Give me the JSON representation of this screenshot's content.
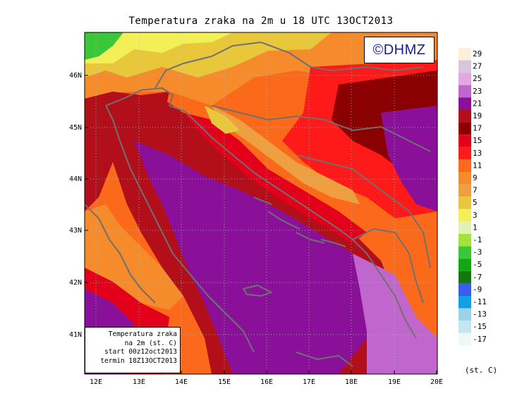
{
  "title": "Temperatura zraka na 2m u 18 UTC 13OCT2013",
  "logo": "©DHMZ",
  "info_box": {
    "line1": "Temperatura zraka",
    "line2": "na 2m (st. C)",
    "line3": "start 00z12oct2013",
    "line4": "termin 18Z13OCT2013"
  },
  "x_ticks": [
    "12E",
    "13E",
    "14E",
    "15E",
    "16E",
    "17E",
    "18E",
    "19E",
    "20E"
  ],
  "y_ticks": [
    "46N",
    "45N",
    "44N",
    "43N",
    "42N",
    "41N"
  ],
  "legend": {
    "unit": "(st. C)",
    "levels": [
      "29",
      "27",
      "25",
      "23",
      "21",
      "19",
      "17",
      "15",
      "13",
      "11",
      "9",
      "7",
      "5",
      "3",
      "1",
      "-1",
      "-3",
      "-5",
      "-7",
      "-9",
      "-11",
      "-13",
      "-15",
      "-17"
    ],
    "colors": [
      "#fdeedd",
      "#d9c6dc",
      "#e3a8e3",
      "#c166cc",
      "#8a109a",
      "#b20f1a",
      "#8b0000",
      "#e3001a",
      "#ff1a1a",
      "#fb6a1a",
      "#f58b2a",
      "#eea040",
      "#e8c83a",
      "#f2f056",
      "#e2f2b6",
      "#a4e23a",
      "#3ac83a",
      "#12a812",
      "#127812",
      "#3a5cf0",
      "#12a0e6",
      "#9ad2e6",
      "#c4e6ee",
      "#eef8f8"
    ]
  },
  "map_colors": {
    "sea": "#8a109a",
    "warm_sea": "#b20f1a",
    "coast": "#e3001a",
    "hills": "#fb6a1a",
    "highlands": "#f58b2a",
    "mountains": "#e8c83a",
    "alps": "#f2f056",
    "peaks": "#3ac83a",
    "south_sea": "#c166cc",
    "land_red": "#ff1a1a",
    "dark_land": "#8b0000",
    "border_line": "#707070"
  }
}
